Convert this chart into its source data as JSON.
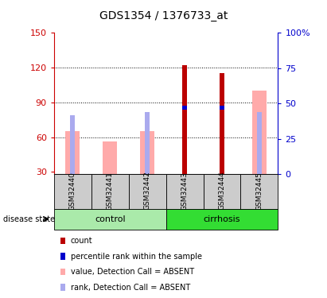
{
  "title": "GDS1354 / 1376733_at",
  "samples": [
    "GSM32440",
    "GSM32441",
    "GSM32442",
    "GSM32443",
    "GSM32444",
    "GSM32445"
  ],
  "group_labels": [
    "control",
    "cirrhosis"
  ],
  "group_ranges": [
    [
      0,
      3
    ],
    [
      3,
      6
    ]
  ],
  "ylim_left": [
    28,
    150
  ],
  "ylim_right": [
    0,
    100
  ],
  "yticks_left": [
    30,
    60,
    90,
    120,
    150
  ],
  "yticks_right": [
    0,
    25,
    50,
    75,
    100
  ],
  "left_axis_color": "#cc0000",
  "right_axis_color": "#0000cc",
  "count_color": "#bb0000",
  "rank_color": "#0000cc",
  "value_absent_color": "#ffaaaa",
  "rank_absent_color": "#aaaaee",
  "control_bg": "#aaeaaa",
  "cirrhosis_bg": "#33dd33",
  "sample_bg": "#cccccc",
  "bar_bottom": 28,
  "bars": [
    {
      "sample": "GSM32440",
      "count": null,
      "rank_pct": null,
      "value_absent": 65,
      "rank_absent_pct": 42
    },
    {
      "sample": "GSM32441",
      "count": null,
      "rank_pct": null,
      "value_absent": 56,
      "rank_absent_pct": null
    },
    {
      "sample": "GSM32442",
      "count": null,
      "rank_pct": null,
      "value_absent": 65,
      "rank_absent_pct": 44
    },
    {
      "sample": "GSM32443",
      "count": 122,
      "rank_pct": 47,
      "value_absent": null,
      "rank_absent_pct": null
    },
    {
      "sample": "GSM32444",
      "count": 115,
      "rank_pct": 47,
      "value_absent": null,
      "rank_absent_pct": null
    },
    {
      "sample": "GSM32445",
      "count": null,
      "rank_pct": null,
      "value_absent": 100,
      "rank_absent_pct": 44
    }
  ],
  "legend_items": [
    {
      "label": "count",
      "color": "#bb0000"
    },
    {
      "label": "percentile rank within the sample",
      "color": "#0000cc"
    },
    {
      "label": "value, Detection Call = ABSENT",
      "color": "#ffaaaa"
    },
    {
      "label": "rank, Detection Call = ABSENT",
      "color": "#aaaaee"
    }
  ],
  "figsize": [
    4.11,
    3.75
  ],
  "dpi": 100
}
